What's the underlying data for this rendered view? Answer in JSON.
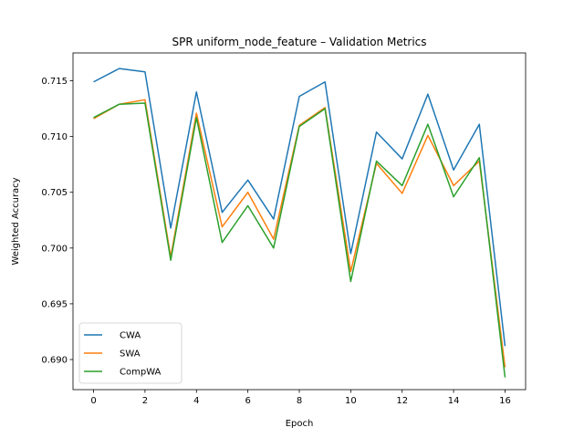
{
  "chart_data": {
    "type": "line",
    "title": "SPR uniform_node_feature – Validation Metrics",
    "xlabel": "Epoch",
    "ylabel": "Weighted Accuracy",
    "x": [
      0,
      1,
      2,
      3,
      4,
      5,
      6,
      7,
      8,
      9,
      10,
      11,
      12,
      13,
      14,
      15,
      16
    ],
    "xlim": [
      -0.8,
      16.8
    ],
    "ylim": [
      0.6873,
      0.7175
    ],
    "xticks": [
      0,
      2,
      4,
      6,
      8,
      10,
      12,
      14,
      16
    ],
    "yticks": [
      0.69,
      0.695,
      0.7,
      0.705,
      0.71,
      0.715
    ],
    "ytick_labels": [
      "0.690",
      "0.695",
      "0.700",
      "0.705",
      "0.710",
      "0.715"
    ],
    "grid": false,
    "legend_position": "lower-left",
    "series": [
      {
        "name": "CWA",
        "color": "#1f77b4",
        "values": [
          0.7149,
          0.7161,
          0.7158,
          0.7018,
          0.714,
          0.7032,
          0.7061,
          0.7026,
          0.7136,
          0.7149,
          0.6995,
          0.7104,
          0.708,
          0.7138,
          0.707,
          0.7111,
          0.6912
        ]
      },
      {
        "name": "SWA",
        "color": "#ff7f0e",
        "values": [
          0.7116,
          0.7129,
          0.7133,
          0.6992,
          0.7121,
          0.7019,
          0.705,
          0.7008,
          0.711,
          0.7126,
          0.6979,
          0.7076,
          0.7049,
          0.7101,
          0.7056,
          0.7078,
          0.6893
        ]
      },
      {
        "name": "CompWA",
        "color": "#2ca02c",
        "values": [
          0.7117,
          0.7129,
          0.713,
          0.6989,
          0.7117,
          0.7005,
          0.7038,
          0.7,
          0.7109,
          0.7125,
          0.697,
          0.7078,
          0.7056,
          0.7111,
          0.7046,
          0.7081,
          0.6884
        ]
      }
    ]
  }
}
